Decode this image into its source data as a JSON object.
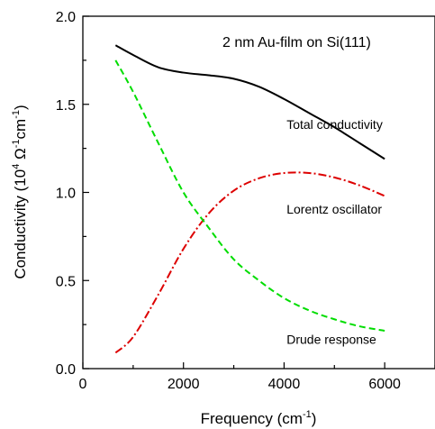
{
  "chart_data": {
    "type": "line",
    "title": "2 nm Au-film on Si(111)",
    "xlabel": "Frequency (cm",
    "xlabel_sup": "-1",
    "xlabel_end": ")",
    "ylabel": "Conductivity (10",
    "ylabel_sup1": "4",
    "ylabel_mid": " Ω",
    "ylabel_sup2": "-1",
    "ylabel_mid2": "cm",
    "ylabel_sup3": "-1",
    "ylabel_end": ")",
    "xlim": [
      0,
      7000
    ],
    "ylim": [
      0.0,
      2.0
    ],
    "x_ticks": [
      0,
      2000,
      4000,
      6000
    ],
    "x_tick_labels": [
      "0",
      "2000",
      "4000",
      "6000"
    ],
    "y_ticks": [
      0.0,
      0.5,
      1.0,
      1.5,
      2.0
    ],
    "y_tick_labels": [
      "0.0",
      "0.5",
      "1.0",
      "1.5",
      "2.0"
    ],
    "grid": false,
    "series": [
      {
        "name": "Total conductivity",
        "color": "#000000",
        "dash": "solid",
        "x": [
          650,
          1000,
          1500,
          2000,
          2500,
          3000,
          3500,
          4000,
          4500,
          5000,
          5500,
          6000
        ],
        "y": [
          1.835,
          1.78,
          1.71,
          1.68,
          1.665,
          1.645,
          1.6,
          1.53,
          1.45,
          1.37,
          1.28,
          1.19
        ]
      },
      {
        "name": "Lorentz oscillator",
        "color": "#dd0000",
        "dash": "dashdot",
        "x": [
          650,
          1000,
          1500,
          2000,
          2500,
          3000,
          3500,
          4000,
          4500,
          5000,
          5500,
          6000
        ],
        "y": [
          0.09,
          0.18,
          0.42,
          0.68,
          0.88,
          1.01,
          1.08,
          1.11,
          1.11,
          1.085,
          1.04,
          0.98
        ]
      },
      {
        "name": "Drude response",
        "color": "#00dd00",
        "dash": "dashed",
        "x": [
          650,
          1000,
          1500,
          2000,
          2500,
          3000,
          3500,
          4000,
          4500,
          5000,
          5500,
          6000
        ],
        "y": [
          1.75,
          1.57,
          1.28,
          1.0,
          0.8,
          0.62,
          0.5,
          0.4,
          0.33,
          0.28,
          0.24,
          0.215
        ]
      }
    ],
    "annotations": [
      {
        "text": "Total conductivity",
        "x": 4050,
        "y": 1.36
      },
      {
        "text": "Lorentz oscillator",
        "x": 4050,
        "y": 0.88
      },
      {
        "text": "Drude response",
        "x": 4050,
        "y": 0.14
      }
    ]
  }
}
